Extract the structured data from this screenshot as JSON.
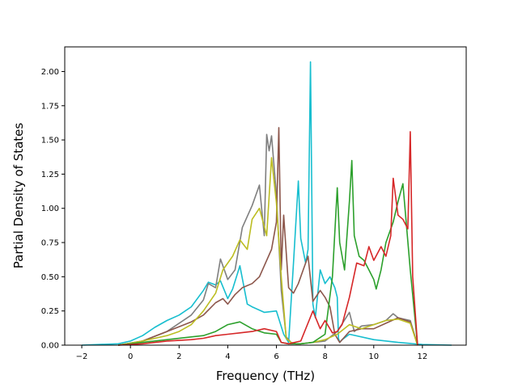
{
  "chart_data": {
    "type": "line",
    "title": "",
    "xlabel": "Frequency (THz)",
    "ylabel": "Partial Density of States",
    "xlim": [
      -2.7,
      13.8
    ],
    "ylim": [
      0,
      2.18
    ],
    "xticks": [
      -2,
      0,
      2,
      4,
      6,
      8,
      10,
      12
    ],
    "yticks": [
      0.0,
      0.25,
      0.5,
      0.75,
      1.0,
      1.25,
      1.5,
      1.75,
      2.0
    ],
    "xtick_labels": [
      "−2",
      "0",
      "2",
      "4",
      "6",
      "8",
      "10",
      "12"
    ],
    "ytick_labels": [
      "0.00",
      "0.25",
      "0.50",
      "0.75",
      "1.00",
      "1.25",
      "1.50",
      "1.75",
      "2.00"
    ],
    "grid": false,
    "legend": "none",
    "series": [
      {
        "color": "#17becf",
        "x": [
          -2.0,
          -0.5,
          0.0,
          0.5,
          1.0,
          1.5,
          2.0,
          2.5,
          3.0,
          3.2,
          3.5,
          3.7,
          4.0,
          4.2,
          4.5,
          4.8,
          5.0,
          5.5,
          6.0,
          6.3,
          6.5,
          6.7,
          6.9,
          7.0,
          7.2,
          7.3,
          7.4,
          7.5,
          7.6,
          7.8,
          8.0,
          8.2,
          8.4,
          8.5,
          8.55,
          8.6,
          8.7,
          9.0,
          10.0,
          11.0,
          12.0,
          13.2
        ],
        "y": [
          0,
          0.01,
          0.03,
          0.07,
          0.13,
          0.18,
          0.22,
          0.28,
          0.4,
          0.46,
          0.44,
          0.47,
          0.34,
          0.41,
          0.58,
          0.3,
          0.28,
          0.24,
          0.25,
          0.08,
          0.02,
          0.6,
          1.2,
          0.78,
          0.6,
          0.7,
          2.07,
          0.3,
          0.2,
          0.55,
          0.45,
          0.5,
          0.42,
          0.35,
          0.05,
          0.02,
          0.04,
          0.08,
          0.04,
          0.02,
          0.005,
          0
        ]
      },
      {
        "color": "#7f7f7f",
        "x": [
          -0.5,
          0.5,
          1.5,
          2.5,
          3.0,
          3.2,
          3.5,
          3.7,
          4.0,
          4.3,
          4.6,
          5.0,
          5.3,
          5.5,
          5.6,
          5.7,
          5.8,
          6.0,
          6.2,
          6.4,
          6.6,
          6.8,
          7.0,
          7.5,
          8.0,
          8.5,
          9.0,
          9.2,
          9.5,
          10.0,
          10.5,
          10.8,
          11.0,
          11.5,
          11.8
        ],
        "y": [
          0,
          0.03,
          0.1,
          0.22,
          0.33,
          0.45,
          0.42,
          0.63,
          0.48,
          0.55,
          0.86,
          1.02,
          1.17,
          0.8,
          1.54,
          1.42,
          1.53,
          1.1,
          0.4,
          0.06,
          0.02,
          0.01,
          0.01,
          0.02,
          0.03,
          0.1,
          0.24,
          0.1,
          0.14,
          0.15,
          0.18,
          0.23,
          0.2,
          0.18,
          0
        ]
      },
      {
        "color": "#8c564b",
        "x": [
          -0.5,
          0.5,
          1.5,
          2.5,
          3.0,
          3.5,
          3.8,
          4.0,
          4.3,
          4.6,
          5.0,
          5.3,
          5.6,
          5.8,
          6.0,
          6.1,
          6.2,
          6.3,
          6.5,
          6.7,
          6.9,
          7.1,
          7.3,
          7.5,
          7.8,
          8.0,
          8.2,
          8.4,
          8.6,
          9.0,
          9.5,
          10.0,
          10.5,
          11.0,
          11.5,
          11.8
        ],
        "y": [
          0,
          0.03,
          0.1,
          0.17,
          0.22,
          0.31,
          0.34,
          0.3,
          0.37,
          0.42,
          0.45,
          0.5,
          0.62,
          0.7,
          0.9,
          1.59,
          0.55,
          0.95,
          0.42,
          0.38,
          0.45,
          0.55,
          0.65,
          0.32,
          0.4,
          0.35,
          0.28,
          0.08,
          0.02,
          0.1,
          0.12,
          0.12,
          0.16,
          0.2,
          0.17,
          0
        ]
      },
      {
        "color": "#bcbd22",
        "x": [
          -0.5,
          0.5,
          1.5,
          2.0,
          2.5,
          3.0,
          3.5,
          3.8,
          4.2,
          4.5,
          4.8,
          5.0,
          5.3,
          5.6,
          5.8,
          6.0,
          6.2,
          6.4,
          6.6,
          6.8,
          7.0,
          7.5,
          8.0,
          8.5,
          9.0,
          9.5,
          10.0,
          10.5,
          11.0,
          11.5,
          11.8
        ],
        "y": [
          0,
          0.03,
          0.07,
          0.1,
          0.15,
          0.25,
          0.38,
          0.55,
          0.65,
          0.77,
          0.7,
          0.92,
          1.0,
          0.8,
          1.37,
          1.04,
          0.5,
          0.05,
          0.02,
          0.01,
          0.01,
          0.02,
          0.04,
          0.08,
          0.15,
          0.12,
          0.15,
          0.18,
          0.19,
          0.16,
          0
        ]
      },
      {
        "color": "#2ca02c",
        "x": [
          -0.5,
          0.5,
          1.5,
          2.5,
          3.0,
          3.5,
          4.0,
          4.5,
          5.0,
          5.5,
          6.0,
          6.2,
          6.5,
          7.0,
          7.5,
          8.0,
          8.3,
          8.5,
          8.6,
          8.8,
          9.0,
          9.1,
          9.2,
          9.4,
          9.6,
          9.8,
          10.0,
          10.1,
          10.3,
          10.5,
          10.8,
          11.0,
          11.2,
          11.5,
          11.8
        ],
        "y": [
          0,
          0.02,
          0.04,
          0.06,
          0.07,
          0.1,
          0.15,
          0.17,
          0.12,
          0.09,
          0.08,
          0.02,
          0.01,
          0.01,
          0.02,
          0.08,
          0.5,
          1.15,
          0.75,
          0.55,
          1.05,
          1.35,
          0.8,
          0.65,
          0.62,
          0.55,
          0.48,
          0.41,
          0.55,
          0.75,
          0.9,
          1.05,
          1.18,
          0.55,
          0
        ]
      },
      {
        "color": "#d62728",
        "x": [
          -0.5,
          0.5,
          1.5,
          2.5,
          3.0,
          3.5,
          4.0,
          4.5,
          5.0,
          5.5,
          6.0,
          6.2,
          6.5,
          7.0,
          7.5,
          7.8,
          8.0,
          8.3,
          8.5,
          8.7,
          9.0,
          9.3,
          9.6,
          9.8,
          10.0,
          10.3,
          10.5,
          10.7,
          10.8,
          11.0,
          11.2,
          11.4,
          11.5,
          11.6,
          11.8
        ],
        "y": [
          0,
          0.01,
          0.03,
          0.04,
          0.05,
          0.07,
          0.08,
          0.09,
          0.1,
          0.12,
          0.1,
          0.02,
          0.01,
          0.03,
          0.25,
          0.12,
          0.18,
          0.09,
          0.1,
          0.15,
          0.35,
          0.6,
          0.58,
          0.72,
          0.62,
          0.72,
          0.65,
          0.8,
          1.22,
          0.95,
          0.92,
          0.85,
          1.56,
          0.5,
          0
        ]
      }
    ]
  }
}
